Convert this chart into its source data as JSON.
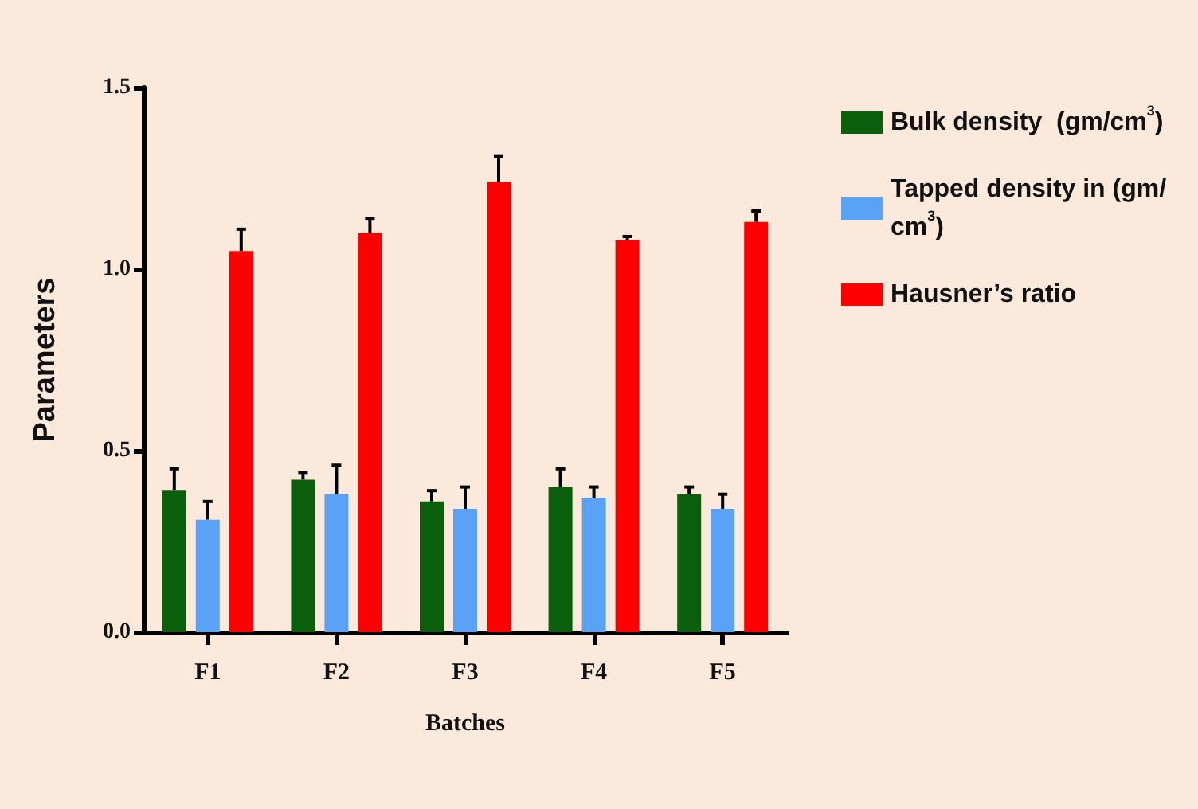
{
  "chart_data": {
    "type": "bar",
    "xlabel": "Batches",
    "ylabel": "Parameters",
    "categories": [
      "F1",
      "F2",
      "F3",
      "F4",
      "F5"
    ],
    "series": [
      {
        "name": "Bulk density  (gm/cm$^{3}$)",
        "color": "#0b5e0b",
        "values": [
          0.39,
          0.42,
          0.36,
          0.4,
          0.38
        ],
        "errors": [
          0.06,
          0.02,
          0.03,
          0.05,
          0.02
        ]
      },
      {
        "name": "Tapped density in (gm/cm$^{3}$)",
        "color": "#5aa2f5",
        "values": [
          0.31,
          0.38,
          0.34,
          0.37,
          0.34
        ],
        "errors": [
          0.05,
          0.08,
          0.06,
          0.03,
          0.04
        ]
      },
      {
        "name": "Hausner’s ratio",
        "color": "#ff0000",
        "values": [
          1.05,
          1.1,
          1.24,
          1.08,
          1.13
        ],
        "errors": [
          0.06,
          0.04,
          0.07,
          0.01,
          0.03
        ]
      }
    ],
    "ylim": [
      0,
      1.5
    ],
    "yticks": [
      {
        "value": 0,
        "label": "0.0"
      },
      0.5,
      {
        "value": 1,
        "label": "1.0"
      },
      1.5
    ],
    "grid": false,
    "legend": "right"
  }
}
